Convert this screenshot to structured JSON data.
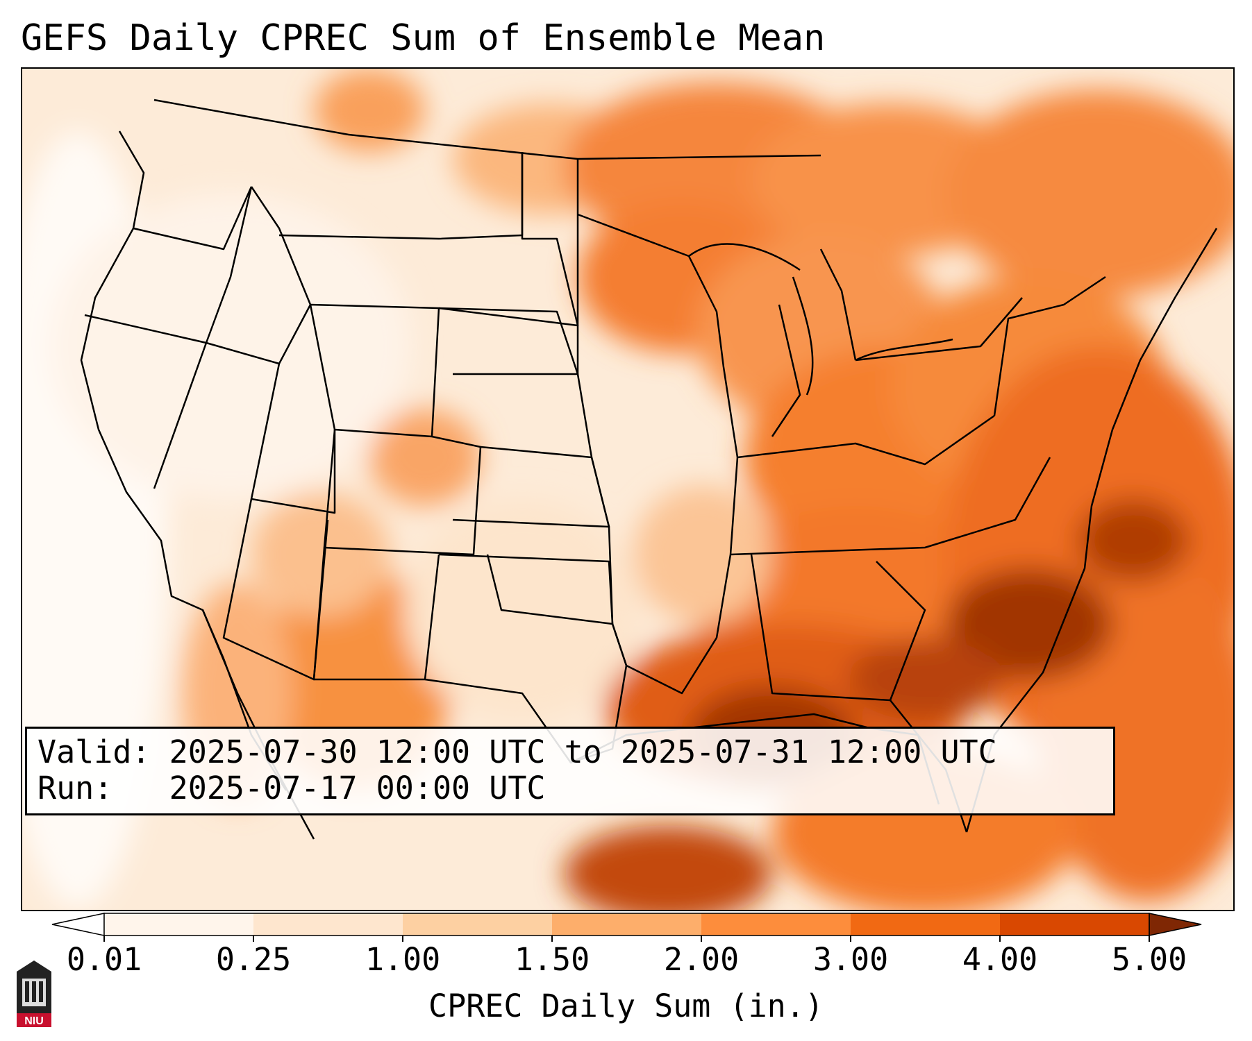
{
  "title": "GEFS Daily CPREC Sum of Ensemble Mean",
  "info": {
    "valid_label": "Valid:",
    "valid_value": "2025-07-30 12:00 UTC to 2025-07-31 12:00 UTC",
    "run_label": "Run:",
    "run_value": "2025-07-17 00:00 UTC"
  },
  "colorbar": {
    "label": "CPREC Daily Sum (in.)",
    "ticks": [
      "0.01",
      "0.25",
      "1.00",
      "1.50",
      "2.00",
      "3.00",
      "4.00",
      "5.00"
    ],
    "colors": [
      "#fff5eb",
      "#fee6ce",
      "#fdd0a2",
      "#fdae6b",
      "#fd8d3c",
      "#f16913",
      "#d94801",
      "#8c2d04"
    ],
    "under_color": "#ffffff",
    "over_color": "#7f2704"
  },
  "logo": {
    "text": "NIU",
    "primary_color": "#c8102e"
  }
}
